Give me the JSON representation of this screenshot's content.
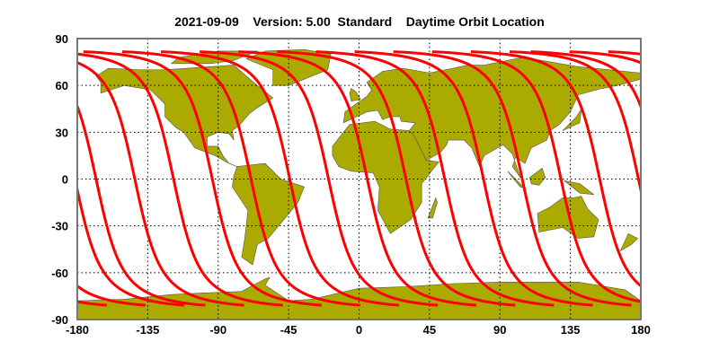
{
  "title": "2021-09-09    Version: 5.00  Standard    Daytime Orbit Location",
  "map": {
    "projection": "equirectangular",
    "lon_range": [
      -180,
      180
    ],
    "lat_range": [
      -90,
      90
    ],
    "x_ticks": [
      "-180",
      "-135",
      "-90",
      "-45",
      "0",
      "45",
      "90",
      "135",
      "180"
    ],
    "y_ticks": [
      "90",
      "60",
      "30",
      "0",
      "-30",
      "-60",
      "-90"
    ],
    "grid": "dotted",
    "land_color": "#aaaa00",
    "track_color": "#ff0000",
    "track_count": 15
  }
}
